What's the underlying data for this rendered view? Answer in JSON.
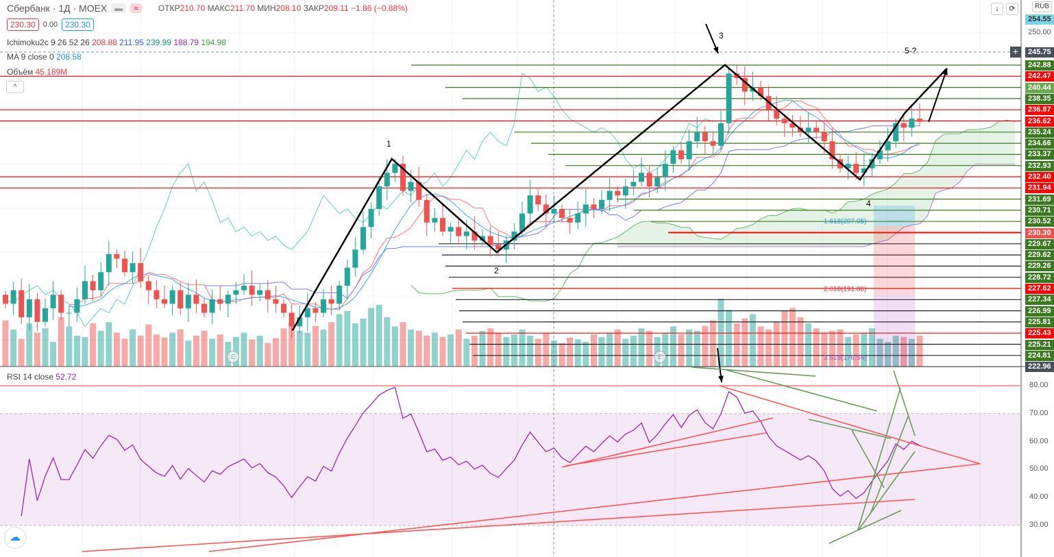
{
  "header": {
    "symbol": "Сбербанк · 1Д · MOEX",
    "ohlc": {
      "open_label": "ОТКР",
      "open": "210.70",
      "high_label": "МАКС",
      "high": "211.70",
      "low_label": "МИН",
      "low": "208.10",
      "close_label": "ЗАКР",
      "close": "209.11",
      "change": "−1.86 (−0.88%)"
    },
    "sell_price": "230.30",
    "spread": "0.00",
    "buy_price": "230.30",
    "ichimoku": {
      "label": "Ichimoku2c 9 26 52 26",
      "v1": "208.88",
      "v2": "211.95",
      "v3": "239.99",
      "v4": "188.79",
      "v5": "194.98"
    },
    "ma": {
      "label": "MA 9 close 0",
      "value": "208.58"
    },
    "volume": {
      "label": "Объём",
      "value": "45.189M"
    },
    "collapse": "^"
  },
  "toolbar": {
    "currency": "RUB",
    "down_icon": "↓",
    "reset_icon": "⟳"
  },
  "price_axis": {
    "top_partial": "254.55",
    "plain": "250.00",
    "crosshair": "245.75",
    "levels": [
      {
        "v": "242.88",
        "c": "#3a7a1e"
      },
      {
        "v": "242.47",
        "c": "#ff0000"
      },
      {
        "v": "240.44",
        "c": "#6aa84f"
      },
      {
        "v": "238.35",
        "c": "#3a7a1e"
      },
      {
        "v": "236.87",
        "c": "#ff0000"
      },
      {
        "v": "236.62",
        "c": "#ff0000"
      },
      {
        "v": "235.24",
        "c": "#3a7a1e"
      },
      {
        "v": "234.66",
        "c": "#3a7a1e"
      },
      {
        "v": "233.37",
        "c": "#3a7a1e"
      },
      {
        "v": "232.93",
        "c": "#3a7a1e"
      },
      {
        "v": "232.40",
        "c": "#ff0000"
      },
      {
        "v": "231.94",
        "c": "#ff0000"
      },
      {
        "v": "231.69",
        "c": "#3a7a1e"
      },
      {
        "v": "230.71",
        "c": "#3a7a1e"
      },
      {
        "v": "230.52",
        "c": "#3a7a1e"
      },
      {
        "v": "230.30",
        "c": "#ef5350"
      },
      {
        "v": "229.67",
        "c": "#3a7a1e"
      },
      {
        "v": "229.62",
        "c": "#3a7a1e"
      },
      {
        "v": "229.26",
        "c": "#3a7a1e"
      },
      {
        "v": "228.72",
        "c": "#3a7a1e"
      },
      {
        "v": "227.62",
        "c": "#ff0000"
      },
      {
        "v": "227.34",
        "c": "#3a7a1e"
      },
      {
        "v": "226.99",
        "c": "#3a7a1e"
      },
      {
        "v": "225.81",
        "c": "#3a7a1e"
      },
      {
        "v": "225.43",
        "c": "#ff0000"
      },
      {
        "v": "225.21",
        "c": "#3a7a1e"
      },
      {
        "v": "224.81",
        "c": "#3a7a1e"
      },
      {
        "v": "222.96",
        "c": "#4a4f5c"
      }
    ]
  },
  "rsi": {
    "label": "RSI 14 close",
    "value": "52.72",
    "axis": [
      "80.00",
      "70.00",
      "60.00",
      "50.00",
      "40.00",
      "30.00"
    ]
  },
  "annotations": {
    "w1": "1",
    "w2": "2",
    "w3": "3",
    "w4": "4",
    "w5": "5-?",
    "fib1": "1.618(207.05)",
    "fib2": "2.618(191.80)",
    "fib3": "3.618(176.54)",
    "earn": "E"
  },
  "colors": {
    "up": "#26a69a",
    "down": "#ef5350",
    "rsi": "#9c27b0"
  },
  "chart_data": {
    "type": "candlestick",
    "first_open": 192,
    "closes": [
      190,
      193,
      187,
      191,
      186,
      189,
      192,
      188,
      188,
      191,
      195,
      193,
      197,
      201,
      200,
      197,
      199,
      195,
      193,
      191,
      190,
      193,
      189,
      192,
      190,
      188,
      191,
      190,
      192,
      193,
      194,
      192,
      193,
      191,
      190,
      188,
      185,
      187,
      189,
      188,
      191,
      190,
      194,
      198,
      202,
      207,
      211,
      216,
      219,
      221,
      215,
      217,
      213,
      208,
      209,
      206,
      207,
      205,
      206,
      204,
      205,
      203,
      202,
      204,
      206,
      210,
      214,
      212,
      210,
      211,
      209,
      208,
      210,
      212,
      211,
      213,
      215,
      214,
      216,
      217,
      219,
      216,
      218,
      221,
      224,
      222,
      226,
      228,
      226,
      225,
      230,
      241,
      240,
      237,
      238,
      236,
      233,
      231,
      230,
      229,
      228,
      229,
      228,
      226,
      222,
      220,
      221,
      219,
      220,
      222,
      224,
      226,
      230,
      229,
      231,
      230.3
    ],
    "volume_millions": [
      75,
      60,
      45,
      70,
      55,
      62,
      40,
      80,
      65,
      50,
      48,
      70,
      58,
      72,
      55,
      45,
      60,
      50,
      68,
      52,
      47,
      55,
      60,
      42,
      50,
      58,
      45,
      52,
      40,
      48,
      55,
      44,
      50,
      38,
      46,
      62,
      70,
      58,
      55,
      66,
      60,
      72,
      85,
      90,
      70,
      78,
      95,
      100,
      80,
      65,
      72,
      60,
      58,
      50,
      55,
      48,
      52,
      60,
      45,
      50,
      58,
      62,
      55,
      48,
      52,
      60,
      50,
      45,
      55,
      42,
      38,
      47,
      44,
      40,
      52,
      48,
      55,
      60,
      45,
      50,
      62,
      58,
      48,
      55,
      65,
      52,
      60,
      58,
      66,
      75,
      110,
      92,
      70,
      78,
      85,
      65,
      60,
      72,
      90,
      95,
      80,
      70,
      62,
      55,
      58,
      60,
      48,
      52,
      55,
      62,
      45,
      40,
      50,
      48,
      45,
      50
    ],
    "price_range": [
      176,
      254.5
    ],
    "rsi_range": [
      20,
      86
    ],
    "wave": [
      [
        36.1,
        184.1
      ],
      [
        48.6,
        222.1
      ],
      [
        61.8,
        201.4
      ],
      [
        90.5,
        242.9
      ],
      [
        107.5,
        217.5
      ],
      [
        113.1,
        232.2
      ],
      [
        118.4,
        242.1
      ]
    ]
  }
}
